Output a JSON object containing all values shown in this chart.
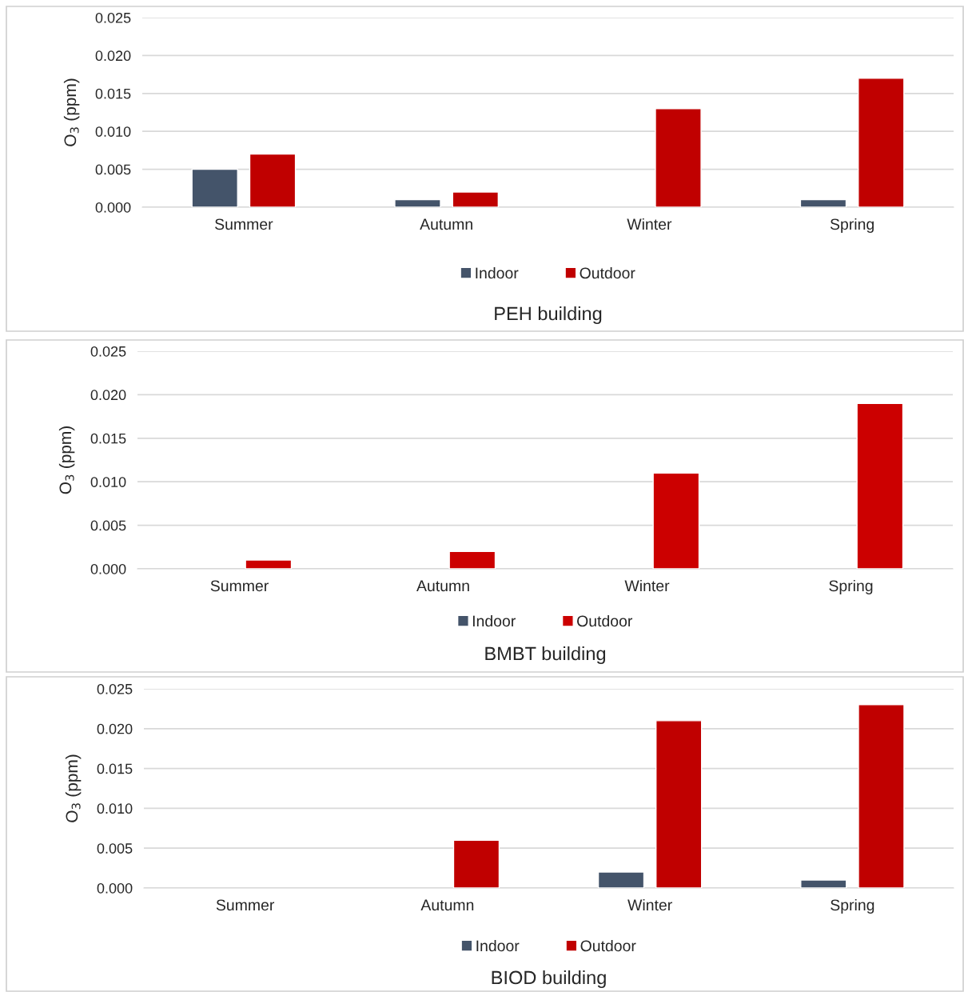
{
  "chart_data": [
    {
      "type": "bar",
      "title": "PEH building",
      "ylabel": "O$_{3}$ (ppm)",
      "categories": [
        "Summer",
        "Autumn",
        "Winter",
        "Spring"
      ],
      "series": [
        {
          "name": "Indoor",
          "color": "#44546a",
          "values": [
            0.005,
            0.001,
            null,
            0.001
          ]
        },
        {
          "name": "Outdoor",
          "color": "#c00000",
          "values": [
            0.007,
            0.002,
            0.013,
            0.017
          ]
        }
      ],
      "ylim": [
        0,
        0.025
      ],
      "yticks": [
        {
          "value": 0,
          "label": "0.000"
        },
        {
          "value": 0.005,
          "label": "0.005"
        },
        {
          "value": 0.01,
          "label": "0.010"
        },
        {
          "value": 0.015,
          "label": "0.015"
        },
        {
          "value": 0.02,
          "label": "0.020"
        },
        {
          "value": 0.025,
          "label": "0.025"
        }
      ],
      "grid": "y",
      "legend": "bottom"
    },
    {
      "type": "bar",
      "title": "BMBT building",
      "ylabel": "O$_{3}$ (ppm)",
      "categories": [
        "Summer",
        "Autumn",
        "Winter",
        "Spring"
      ],
      "series": [
        {
          "name": "Indoor",
          "color": "#44546a",
          "values": [
            null,
            null,
            null,
            null
          ]
        },
        {
          "name": "Outdoor",
          "color": "#cc0000",
          "values": [
            0.001,
            0.002,
            0.011,
            0.019
          ]
        }
      ],
      "ylim": [
        0,
        0.025
      ],
      "yticks": [
        {
          "value": 0,
          "label": "0.000"
        },
        {
          "value": 0.005,
          "label": "0.005"
        },
        {
          "value": 0.01,
          "label": "0.010"
        },
        {
          "value": 0.015,
          "label": "0.015"
        },
        {
          "value": 0.02,
          "label": "0.020"
        },
        {
          "value": 0.025,
          "label": "0.025"
        }
      ],
      "grid": "y",
      "legend": "bottom"
    },
    {
      "type": "bar",
      "title": "BIOD building",
      "ylabel": "O$_{3}$ (ppm)",
      "categories": [
        "Summer",
        "Autumn",
        "Winter",
        "Spring"
      ],
      "series": [
        {
          "name": "Indoor",
          "color": "#44546a",
          "values": [
            null,
            null,
            0.002,
            0.001
          ]
        },
        {
          "name": "Outdoor",
          "color": "#c00000",
          "values": [
            null,
            0.006,
            0.021,
            0.023
          ]
        }
      ],
      "ylim": [
        0,
        0.025
      ],
      "yticks": [
        {
          "value": 0,
          "label": "0.000"
        },
        {
          "value": 0.005,
          "label": "0.005"
        },
        {
          "value": 0.01,
          "label": "0.010"
        },
        {
          "value": 0.015,
          "label": "0.015"
        },
        {
          "value": 0.02,
          "label": "0.020"
        },
        {
          "value": 0.025,
          "label": "0.025"
        }
      ],
      "grid": "y",
      "legend": "bottom"
    }
  ]
}
